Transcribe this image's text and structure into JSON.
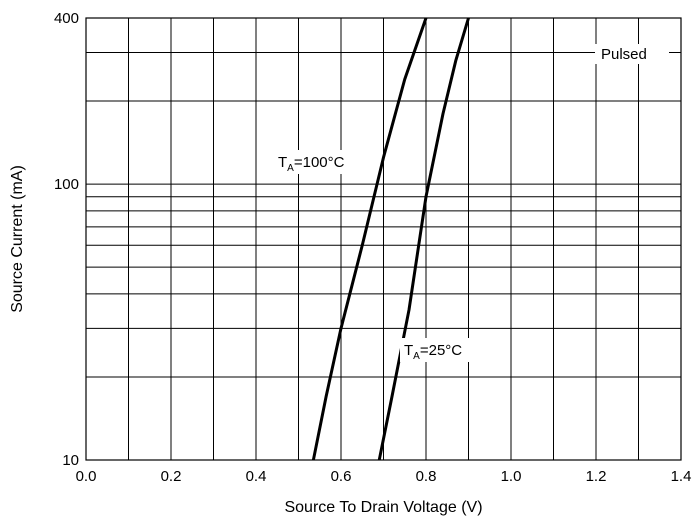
{
  "chart_data": {
    "type": "line",
    "title": "",
    "xlabel": "Source To Drain Voltage (V)",
    "ylabel": "Source Current (mA)",
    "xlim": [
      0.0,
      1.4
    ],
    "ylim": [
      10,
      400
    ],
    "y_scale": "log",
    "grid": true,
    "x_ticks": [
      "0.0",
      "0.2",
      "0.4",
      "0.6",
      "0.8",
      "1.0",
      "1.2",
      "1.4"
    ],
    "y_ticks": [
      "10",
      "100",
      "400"
    ],
    "series": [
      {
        "name": "",
        "label_prefix": "T",
        "label_sub": "A",
        "label_suffix": "=100°C",
        "color": "#000000",
        "x": [
          0.535,
          0.565,
          0.6,
          0.65,
          0.7,
          0.75,
          0.8
        ],
        "y": [
          10,
          17,
          30,
          60,
          125,
          240,
          400
        ]
      },
      {
        "name": "",
        "label_prefix": "T",
        "label_sub": "A",
        "label_suffix": "=25°C",
        "color": "#000000",
        "x": [
          0.69,
          0.72,
          0.76,
          0.8,
          0.84,
          0.87,
          0.9
        ],
        "y": [
          10,
          17,
          35,
          90,
          180,
          280,
          400
        ]
      }
    ],
    "annotations": [
      {
        "text": "Pulsed"
      }
    ]
  }
}
